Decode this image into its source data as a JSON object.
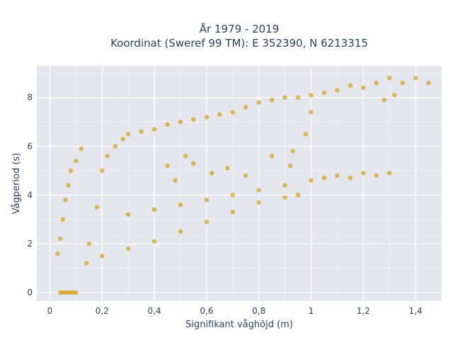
{
  "chart_data": {
    "type": "scatter",
    "title": "År 1979 - 2019",
    "subtitle": "Koordinat (Sweref 99 TM): E 352390, N 6213315",
    "xlabel": "Signifikant våghöjd (m)",
    "ylabel": "Vågperiod (s)",
    "xlim": [
      -0.05,
      1.5
    ],
    "ylim": [
      -0.35,
      9.3
    ],
    "x_ticks": [
      0,
      0.2,
      0.4,
      0.6,
      0.8,
      1,
      1.2,
      1.4
    ],
    "x_tick_labels": [
      "0",
      "0,2",
      "0,4",
      "0,6",
      "0,8",
      "1",
      "1,2",
      "1,4"
    ],
    "y_ticks": [
      0,
      2,
      4,
      6,
      8
    ],
    "y_tick_labels": [
      "0",
      "2",
      "4",
      "6",
      "8"
    ],
    "grid": true,
    "marker_color": "#d4a017",
    "plot_background": "#e5e5ee",
    "series": [
      {
        "values": [
          [
            0.04,
            0.0
          ],
          [
            0.05,
            0.0
          ],
          [
            0.06,
            0.0
          ],
          [
            0.07,
            0.0
          ],
          [
            0.08,
            0.0
          ],
          [
            0.09,
            0.0
          ],
          [
            0.1,
            0.0
          ],
          [
            0.03,
            1.6
          ],
          [
            0.04,
            2.2
          ],
          [
            0.05,
            3.0
          ],
          [
            0.06,
            3.8
          ],
          [
            0.07,
            4.4
          ],
          [
            0.08,
            5.0
          ],
          [
            0.1,
            5.4
          ],
          [
            0.12,
            5.9
          ],
          [
            0.14,
            1.2
          ],
          [
            0.15,
            2.0
          ],
          [
            0.18,
            3.5
          ],
          [
            0.2,
            5.0
          ],
          [
            0.22,
            5.6
          ],
          [
            0.25,
            6.0
          ],
          [
            0.28,
            6.3
          ],
          [
            0.3,
            6.5
          ],
          [
            0.35,
            6.6
          ],
          [
            0.4,
            6.7
          ],
          [
            0.45,
            6.9
          ],
          [
            0.5,
            7.0
          ],
          [
            0.55,
            7.1
          ],
          [
            0.6,
            7.2
          ],
          [
            0.65,
            7.3
          ],
          [
            0.7,
            7.4
          ],
          [
            0.75,
            7.6
          ],
          [
            0.8,
            7.8
          ],
          [
            0.85,
            7.9
          ],
          [
            0.9,
            8.0
          ],
          [
            0.95,
            8.0
          ],
          [
            1.0,
            8.1
          ],
          [
            1.05,
            8.2
          ],
          [
            1.1,
            8.3
          ],
          [
            1.15,
            8.5
          ],
          [
            1.2,
            8.4
          ],
          [
            1.25,
            8.6
          ],
          [
            1.3,
            8.8
          ],
          [
            1.35,
            8.6
          ],
          [
            1.4,
            8.8
          ],
          [
            1.45,
            8.6
          ],
          [
            1.28,
            7.9
          ],
          [
            1.32,
            8.1
          ],
          [
            0.3,
            3.2
          ],
          [
            0.4,
            3.4
          ],
          [
            0.5,
            3.6
          ],
          [
            0.6,
            3.8
          ],
          [
            0.7,
            4.0
          ],
          [
            0.8,
            4.2
          ],
          [
            0.9,
            4.4
          ],
          [
            1.0,
            4.6
          ],
          [
            1.05,
            4.7
          ],
          [
            1.1,
            4.8
          ],
          [
            1.15,
            4.7
          ],
          [
            1.2,
            4.9
          ],
          [
            1.25,
            4.8
          ],
          [
            1.3,
            4.9
          ],
          [
            0.2,
            1.5
          ],
          [
            0.3,
            1.8
          ],
          [
            0.4,
            2.1
          ],
          [
            0.5,
            2.5
          ],
          [
            0.6,
            2.9
          ],
          [
            0.7,
            3.3
          ],
          [
            0.8,
            3.7
          ],
          [
            0.9,
            3.9
          ],
          [
            0.95,
            4.0
          ],
          [
            0.62,
            4.9
          ],
          [
            0.68,
            5.1
          ],
          [
            0.75,
            4.8
          ],
          [
            0.85,
            5.6
          ],
          [
            0.92,
            5.2
          ],
          [
            0.93,
            5.8
          ],
          [
            0.98,
            6.5
          ],
          [
            1.0,
            7.4
          ],
          [
            0.45,
            5.2
          ],
          [
            0.52,
            5.6
          ],
          [
            0.55,
            5.3
          ],
          [
            0.48,
            4.6
          ]
        ]
      }
    ]
  }
}
